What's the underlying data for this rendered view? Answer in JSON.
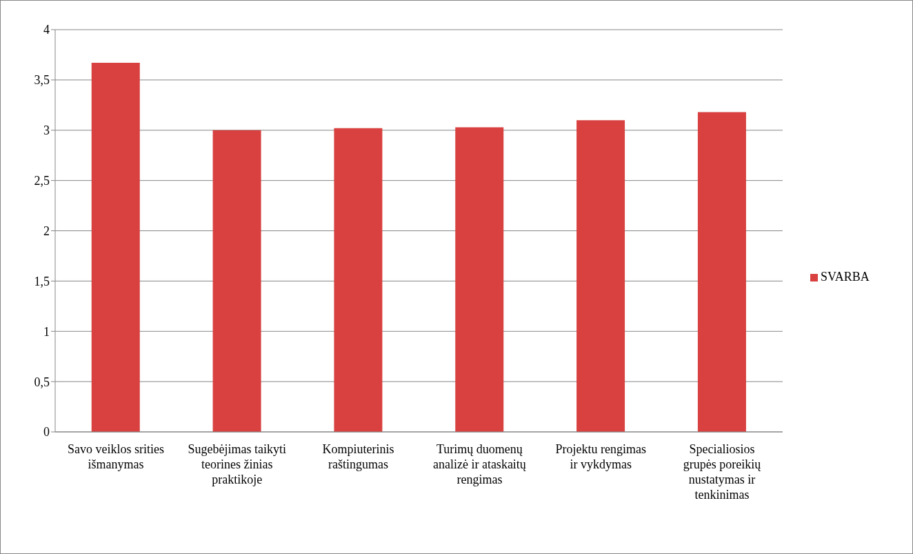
{
  "chart_data": {
    "type": "bar",
    "categories": [
      "Savo veiklos srities išmanymas",
      "Sugebėjimas taikyti teorines žinias praktikoje",
      "Kompiuterinis raštingumas",
      "Turimų duomenų analizė ir ataskaitų rengimas",
      "Projektu rengimas ir vykdymas",
      "Specialiosios grupės poreikių nustatymas ir tenkinimas"
    ],
    "series": [
      {
        "name": "SVARBA",
        "color": "#d84140",
        "values": [
          3.67,
          3.0,
          3.02,
          3.03,
          3.1,
          3.18
        ]
      }
    ],
    "ylim": [
      0,
      4
    ],
    "yticks": [
      0,
      {
        "value": 0.5,
        "label": "0,5"
      },
      1,
      {
        "value": 1.5,
        "label": "1,5"
      },
      2,
      {
        "value": 2.5,
        "label": "2,5"
      },
      3,
      {
        "value": 3.5,
        "label": "3,5"
      },
      4
    ],
    "grid": "y",
    "legend": "right"
  }
}
